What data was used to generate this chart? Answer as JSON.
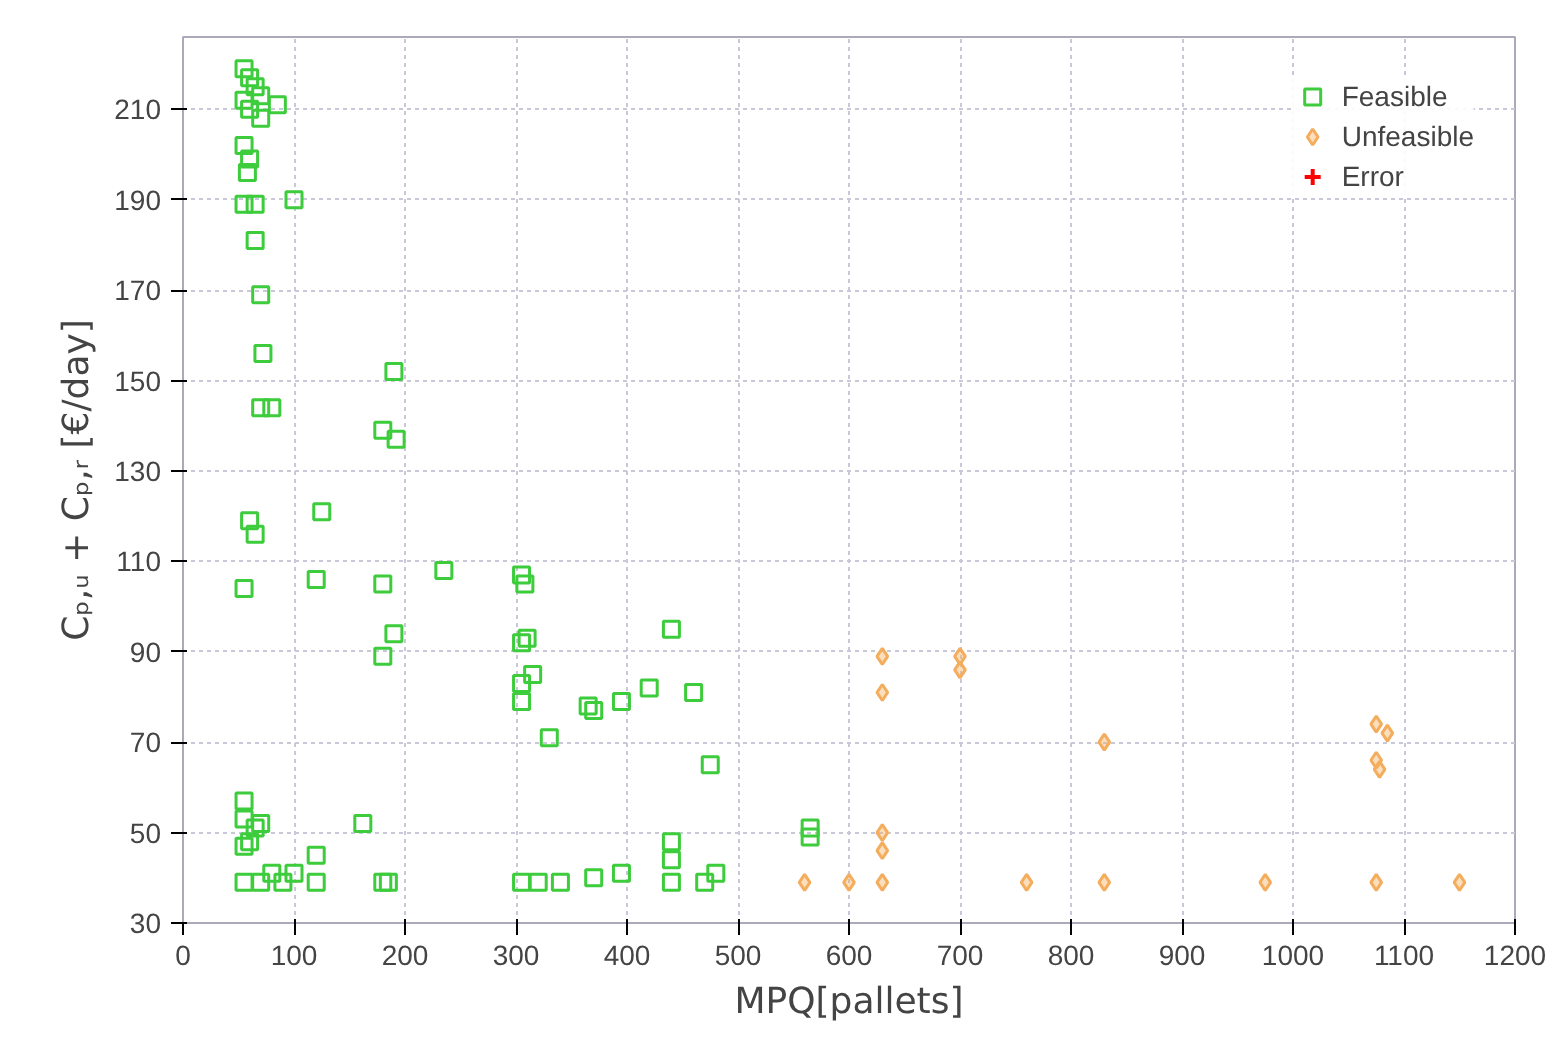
{
  "chart_data": {
    "type": "scatter",
    "xlabel": "MPQ[pallets]",
    "ylabel": "Cₚ,ᵤ + Cₚ,ᵣ [€/day]",
    "xlim": [
      0,
      1200
    ],
    "ylim": [
      30,
      226
    ],
    "xticks": [
      0,
      100,
      200,
      300,
      400,
      500,
      600,
      700,
      800,
      900,
      1000,
      1100,
      1200
    ],
    "yticks": [
      30,
      50,
      70,
      90,
      110,
      130,
      150,
      170,
      190,
      210
    ],
    "grid": true,
    "legend": "top right",
    "series": [
      {
        "name": "Feasible",
        "color": "#3ccc3c",
        "marker": "square",
        "x": [
          55,
          60,
          65,
          55,
          70,
          60,
          85,
          70,
          55,
          60,
          58,
          55,
          65,
          100,
          65,
          70,
          72,
          70,
          80,
          190,
          180,
          192,
          60,
          65,
          125,
          55,
          120,
          180,
          235,
          190,
          180,
          55,
          55,
          65,
          60,
          55,
          70,
          162,
          120,
          55,
          70,
          90,
          120,
          180,
          185,
          100,
          80,
          305,
          308,
          305,
          310,
          305,
          305,
          315,
          330,
          365,
          370,
          395,
          420,
          440,
          460,
          475,
          440,
          440,
          305,
          320,
          340,
          370,
          395,
          440,
          470,
          480,
          565,
          565
        ],
        "values": [
          219,
          217,
          215,
          212,
          213,
          210,
          211,
          208,
          202,
          199,
          196,
          189,
          189,
          190,
          181,
          169,
          156,
          144,
          144,
          152,
          139,
          137,
          119,
          116,
          121,
          104,
          106,
          105,
          108,
          94,
          89,
          57,
          53,
          51,
          48,
          47,
          52,
          52,
          45,
          39,
          39,
          39,
          39,
          39,
          39,
          41,
          41,
          107,
          105,
          92,
          93,
          83,
          79,
          85,
          71,
          78,
          77,
          79,
          82,
          95,
          81,
          65,
          48,
          44,
          39,
          39,
          39,
          40,
          41,
          39,
          39,
          41,
          51,
          49
        ]
      },
      {
        "name": "Unfeasible",
        "color": "#f4ad5c",
        "marker": "diamond",
        "x": [
          630,
          700,
          700,
          630,
          630,
          630,
          560,
          600,
          630,
          760,
          830,
          830,
          975,
          1075,
          1085,
          1075,
          1078,
          1075,
          1150
        ],
        "values": [
          89,
          89,
          86,
          81,
          50,
          46,
          39,
          39,
          39,
          39,
          39,
          70,
          39,
          74,
          72,
          66,
          64,
          39,
          39
        ]
      },
      {
        "name": "Error",
        "color": "#ff0000",
        "marker": "cross"
      }
    ]
  }
}
